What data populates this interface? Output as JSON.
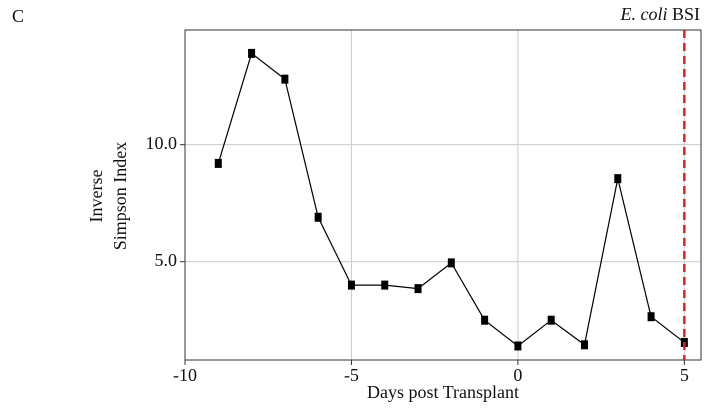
{
  "chart_data": {
    "type": "line",
    "panel_label": "C",
    "xlabel": "Days post Transplant",
    "ylabel": [
      "Inverse",
      "Simpson Index"
    ],
    "annotation": {
      "italic": "E. coli",
      "text": "BSI"
    },
    "x": [
      -9,
      -8,
      -7,
      -6,
      -5,
      -4,
      -3,
      -2,
      -1,
      0,
      1,
      2,
      3,
      4,
      5
    ],
    "series": [
      {
        "color": "#000000",
        "values": [
          9.2,
          13.9,
          12.8,
          6.9,
          4.0,
          4.0,
          3.85,
          4.95,
          2.5,
          1.4,
          2.5,
          1.45,
          8.55,
          2.65,
          1.55
        ]
      }
    ],
    "xlim": [
      -10,
      5.5
    ],
    "ylim": [
      0.8,
      14.9
    ],
    "xticks": [
      -10,
      -5,
      0,
      5
    ],
    "yticks": [
      {
        "value": 5,
        "label": "5.0"
      },
      {
        "value": 10,
        "label": "10.0"
      }
    ],
    "grid": true,
    "vline": {
      "x": 5,
      "color": "#d62728",
      "style": "dashed"
    }
  }
}
